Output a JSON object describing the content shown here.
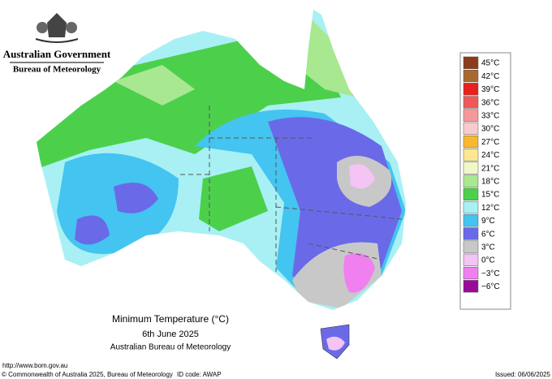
{
  "header": {
    "government": "Australian Government",
    "bureau": "Bureau of Meteorology"
  },
  "legend": {
    "items": [
      {
        "label": "45°C",
        "color": "#8c3b1c"
      },
      {
        "label": "42°C",
        "color": "#a8692f"
      },
      {
        "label": "39°C",
        "color": "#e8201e"
      },
      {
        "label": "36°C",
        "color": "#f05858"
      },
      {
        "label": "33°C",
        "color": "#f59898"
      },
      {
        "label": "30°C",
        "color": "#f8cccc"
      },
      {
        "label": "27°C",
        "color": "#f8b830"
      },
      {
        "label": "24°C",
        "color": "#ffe890"
      },
      {
        "label": "21°C",
        "color": "#eef8c8"
      },
      {
        "label": "18°C",
        "color": "#a8e890"
      },
      {
        "label": "15°C",
        "color": "#4cd04c"
      },
      {
        "label": "12°C",
        "color": "#a8f0f4"
      },
      {
        "label": "9°C",
        "color": "#44c4f0"
      },
      {
        "label": "6°C",
        "color": "#6a6ae8"
      },
      {
        "label": "3°C",
        "color": "#c8c8c8"
      },
      {
        "label": "0°C",
        "color": "#f4c4f4"
      },
      {
        "label": "−3°C",
        "color": "#f080f0"
      },
      {
        "label": "−6°C",
        "color": "#9a0a9a"
      }
    ]
  },
  "title": {
    "line1": "Minimum Temperature (°C)",
    "line2": "6th June 2025",
    "line3": "Australian Bureau of Meteorology"
  },
  "footer": {
    "url": "http://www.bom.gov.au",
    "copyright": "© Commonwealth of Australia 2025, Bureau of Meteorology",
    "id": "ID code: AWAP",
    "issued": "Issued: 06/06/2025"
  }
}
